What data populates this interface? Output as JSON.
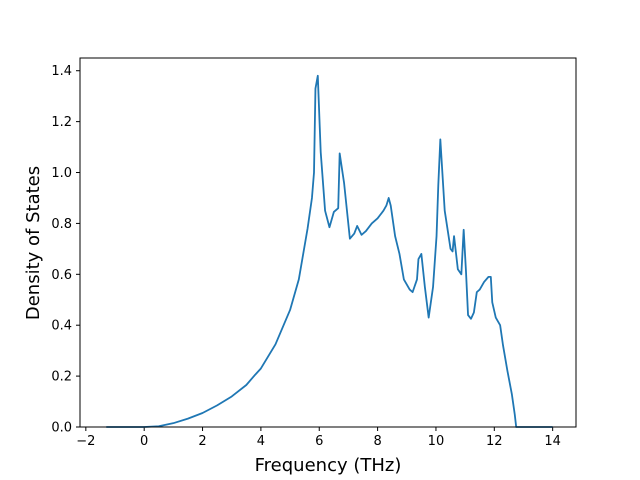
{
  "chart_data": {
    "type": "line",
    "title": "",
    "xlabel": "Frequency (THz)",
    "ylabel": "Density of States",
    "xlim": [
      -2.2,
      14.8
    ],
    "ylim": [
      0.0,
      1.45
    ],
    "xticks": [
      -2,
      0,
      2,
      4,
      6,
      8,
      10,
      12,
      14
    ],
    "yticks": [
      0.0,
      0.2,
      0.4,
      0.6,
      0.8,
      1.0,
      1.2,
      1.4
    ],
    "xtick_labels": [
      "−2",
      "0",
      "2",
      "4",
      "6",
      "8",
      "10",
      "12",
      "14"
    ],
    "ytick_labels": [
      "0.0",
      "0.2",
      "0.4",
      "0.6",
      "0.8",
      "1.0",
      "1.2",
      "1.4"
    ],
    "grid": false,
    "line_color": "#1f77b4",
    "series": [
      {
        "x": [
          -1.3,
          -0.5,
          0.0,
          0.5,
          1.0,
          1.5,
          2.0,
          2.5,
          3.0,
          3.5,
          3.8,
          4.0,
          4.5,
          5.0,
          5.3,
          5.6,
          5.75,
          5.82,
          5.87,
          5.95,
          6.05,
          6.2,
          6.35,
          6.5,
          6.65,
          6.7,
          6.85,
          7.05,
          7.2,
          7.3,
          7.45,
          7.6,
          7.8,
          8.0,
          8.2,
          8.3,
          8.38,
          8.45,
          8.6,
          8.75,
          8.9,
          9.1,
          9.2,
          9.35,
          9.4,
          9.5,
          9.62,
          9.75,
          9.9,
          10.02,
          10.08,
          10.15,
          10.3,
          10.5,
          10.57,
          10.62,
          10.75,
          10.87,
          10.95,
          11.03,
          11.1,
          11.2,
          11.3,
          11.4,
          11.5,
          11.65,
          11.8,
          11.88,
          11.93,
          12.05,
          12.2,
          12.3,
          12.45,
          12.6,
          12.7,
          12.75,
          12.8,
          13.0,
          14.0
        ],
        "y": [
          0.0,
          0.0,
          0.0,
          0.003,
          0.015,
          0.033,
          0.055,
          0.085,
          0.12,
          0.165,
          0.205,
          0.23,
          0.325,
          0.46,
          0.58,
          0.78,
          0.9,
          1.0,
          1.33,
          1.38,
          1.08,
          0.85,
          0.785,
          0.845,
          0.86,
          1.075,
          0.96,
          0.74,
          0.76,
          0.79,
          0.755,
          0.77,
          0.8,
          0.82,
          0.85,
          0.87,
          0.9,
          0.87,
          0.75,
          0.68,
          0.58,
          0.54,
          0.53,
          0.58,
          0.66,
          0.68,
          0.55,
          0.43,
          0.55,
          0.75,
          0.95,
          1.13,
          0.85,
          0.7,
          0.69,
          0.75,
          0.62,
          0.6,
          0.775,
          0.61,
          0.44,
          0.425,
          0.45,
          0.53,
          0.54,
          0.57,
          0.59,
          0.59,
          0.49,
          0.43,
          0.4,
          0.32,
          0.22,
          0.13,
          0.05,
          0.0,
          0.0,
          0.0,
          0.0
        ]
      }
    ]
  }
}
